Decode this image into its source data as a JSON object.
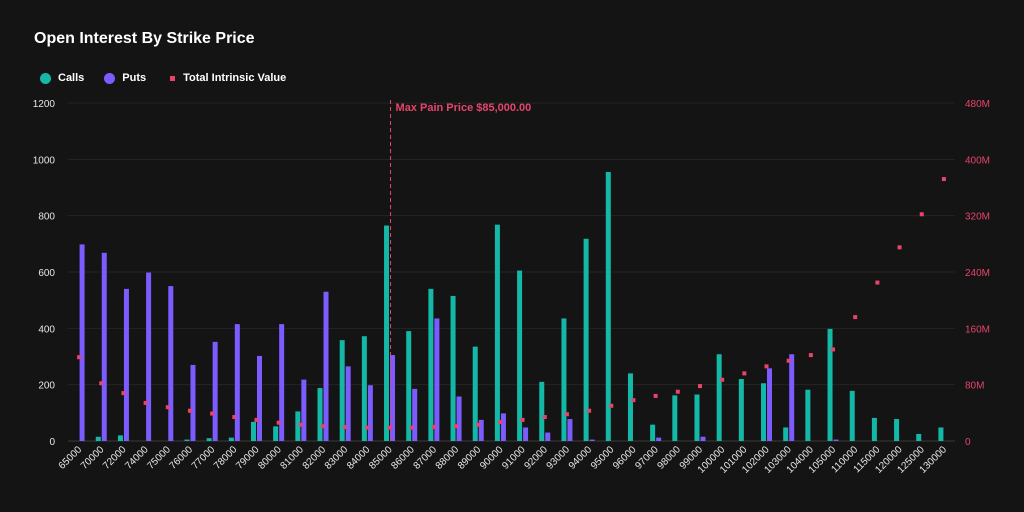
{
  "header": {
    "title": "Open Interest By Strike Price"
  },
  "legend": [
    {
      "label": "Calls",
      "color": "#14b8a6",
      "shape": "circle"
    },
    {
      "label": "Puts",
      "color": "#7c5cff",
      "shape": "circle"
    },
    {
      "label": "Total Intrinsic Value",
      "color": "#e8446b",
      "shape": "square"
    }
  ],
  "chart_data": {
    "type": "bar",
    "title": "Open Interest By Strike Price",
    "categories": [
      "65000",
      "70000",
      "72000",
      "74000",
      "75000",
      "76000",
      "77000",
      "78000",
      "79000",
      "80000",
      "81000",
      "82000",
      "83000",
      "84000",
      "85000",
      "86000",
      "87000",
      "88000",
      "89000",
      "90000",
      "91000",
      "92000",
      "93000",
      "94000",
      "95000",
      "96000",
      "97000",
      "98000",
      "99000",
      "100000",
      "101000",
      "102000",
      "103000",
      "104000",
      "105000",
      "110000",
      "115000",
      "120000",
      "125000",
      "130000"
    ],
    "series": [
      {
        "name": "Calls",
        "axis": "left",
        "type": "bar",
        "color": "#14b8a6",
        "values": [
          0,
          15,
          20,
          0,
          0,
          5,
          10,
          12,
          68,
          52,
          105,
          188,
          358,
          372,
          765,
          390,
          540,
          515,
          335,
          768,
          605,
          210,
          435,
          718,
          955,
          240,
          58,
          162,
          165,
          308,
          220,
          205,
          48,
          182,
          398,
          178,
          82,
          78,
          25,
          48
        ]
      },
      {
        "name": "Puts",
        "axis": "left",
        "type": "bar",
        "color": "#7c5cff",
        "values": [
          698,
          668,
          540,
          598,
          550,
          270,
          352,
          415,
          302,
          415,
          218,
          530,
          265,
          198,
          305,
          185,
          435,
          158,
          75,
          98,
          48,
          30,
          78,
          5,
          0,
          0,
          12,
          0,
          15,
          0,
          0,
          258,
          308,
          0,
          5,
          0,
          0,
          0,
          0,
          0
        ]
      },
      {
        "name": "Total Intrinsic Value",
        "axis": "right",
        "type": "scatter",
        "color": "#e8446b",
        "values": [
          119000000,
          82000000,
          68000000,
          54000000,
          48000000,
          43000000,
          39000000,
          34000000,
          30000000,
          26000000,
          23000000,
          21000000,
          20000000,
          19000000,
          19000000,
          19000000,
          20000000,
          21000000,
          23000000,
          27000000,
          30000000,
          34000000,
          38000000,
          43000000,
          50000000,
          58000000,
          64000000,
          70000000,
          78000000,
          87000000,
          96000000,
          106000000,
          114000000,
          122000000,
          130000000,
          176000000,
          225000000,
          275000000,
          322000000,
          372000000
        ]
      }
    ],
    "left_axis": {
      "min": 0,
      "max": 1200,
      "ticks": [
        "0",
        "200",
        "400",
        "600",
        "800",
        "1000",
        "1200"
      ]
    },
    "right_axis": {
      "min": 0,
      "max": 480000000,
      "ticks": [
        "0",
        "80M",
        "160M",
        "240M",
        "320M",
        "400M",
        "480M"
      ]
    },
    "annotation": {
      "label": "Max Pain Price $85,000.00",
      "at_category": "85000",
      "color": "#e8446b"
    },
    "grid": true,
    "legend_position": "top-left"
  }
}
